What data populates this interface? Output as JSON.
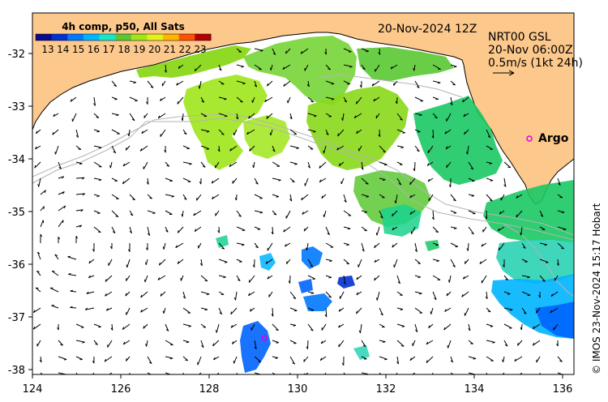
{
  "map": {
    "colorbar": {
      "title": "4h comp, p50, All Sats",
      "labels": [
        "13",
        "14",
        "15",
        "16",
        "17",
        "18",
        "19",
        "20",
        "21",
        "22",
        "23"
      ],
      "colors": [
        "#0a0a8c",
        "#0032d2",
        "#0078ff",
        "#00b4ff",
        "#19e6c8",
        "#5ac832",
        "#a0e619",
        "#e6f019",
        "#ffb400",
        "#ff5000",
        "#b40000"
      ]
    },
    "header": {
      "datetime": "20-Nov-2024 12Z",
      "product": "NRT00 GSL",
      "current_time": "20-Nov 06:00Z",
      "scale": "0.5m/s (1kt 24h)"
    },
    "credit": "© IMOS 23-Nov-2024 15:17 Hobart",
    "marker_label": "Argo",
    "x_ticks": [
      "124",
      "126",
      "128",
      "130",
      "132",
      "134",
      "136"
    ],
    "y_ticks": [
      "-32",
      "-33",
      "-34",
      "-35",
      "-36",
      "-37",
      "-38"
    ],
    "land_color": "#fcc88c"
  }
}
